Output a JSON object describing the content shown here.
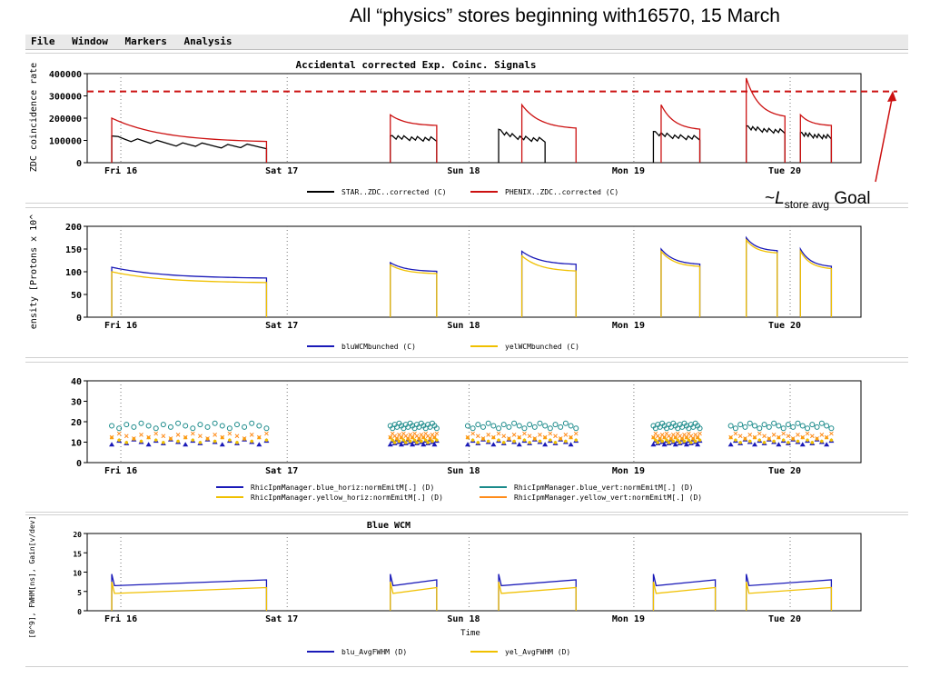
{
  "slide": {
    "title": "All “physics” stores beginning with16570, 15 March",
    "goal_tilde": "~",
    "goal_L": "L",
    "goal_sub": "store avg",
    "goal_word": "Goal"
  },
  "menu": [
    "File",
    "Window",
    "Markers",
    "Analysis"
  ],
  "x_ticks": [
    "Fri 16",
    "Sat 17",
    "Sun 18",
    "Mon 19",
    "Tue 20"
  ],
  "colors": {
    "black": "#000000",
    "red": "#cc1111",
    "blue": "#1a1ab8",
    "yellow": "#f0c000",
    "teal": "#1a8a8a",
    "orange": "#ff8c1a",
    "goal_line": "#cc1111"
  },
  "panels": {
    "zdc": {
      "title": "Accidental corrected Exp. Coinc. Signals",
      "ylabel": "ZDC coincidence rate",
      "yticks": [
        "400000",
        "300000",
        "200000",
        "100000",
        "0"
      ],
      "legend": [
        {
          "label": "STAR..ZDC..corrected (C)",
          "color": "#000000"
        },
        {
          "label": "PHENIX..ZDC..corrected (C)",
          "color": "#cc1111"
        }
      ]
    },
    "intensity": {
      "ylabel": "ensity [Protons x 10^",
      "yticks": [
        "200",
        "150",
        "100",
        "50",
        "0"
      ],
      "legend": [
        {
          "label": "bluWCMbunched (C)",
          "color": "#1a1ab8"
        },
        {
          "label": "yelWCMbunched (C)",
          "color": "#f0c000"
        }
      ]
    },
    "emit": {
      "yticks": [
        "40",
        "30",
        "20",
        "10",
        "0"
      ],
      "legend": [
        {
          "label": "RhicIpmManager.blue_horiz:normEmitM[.] (D)",
          "color": "#1a1ab8",
          "marker": "triangle"
        },
        {
          "label": "RhicIpmManager.blue_vert:normEmitM[.] (D)",
          "color": "#1a8a8a",
          "marker": "circle"
        },
        {
          "label": "RhicIpmManager.yellow_horiz:normEmitM[.] (D)",
          "color": "#f0c000",
          "marker": "star"
        },
        {
          "label": "RhicIpmManager.yellow_vert:normEmitM[.] (D)",
          "color": "#ff8c1a",
          "marker": "x"
        }
      ]
    },
    "wcm": {
      "title": "Blue WCM",
      "ylabel": "[0^9], FWHM[ns], Gain[v/dev]",
      "xlabel": "Time",
      "yticks": [
        "20",
        "15",
        "10",
        "5",
        "0"
      ],
      "legend": [
        {
          "label": "blu_AvgFWHM (D)",
          "color": "#1a1ab8"
        },
        {
          "label": "yel_AvgFWHM (D)",
          "color": "#f0c000"
        }
      ]
    }
  },
  "chart_data": [
    {
      "type": "line",
      "title": "Accidental corrected Exp. Coinc. Signals",
      "ylabel": "ZDC coincidence rate",
      "ylim": [
        0,
        400000
      ],
      "goal_line": 320000,
      "series": [
        {
          "name": "STAR..ZDC..corrected (C)",
          "stores": [
            [
              0.02,
              0.22,
              120000,
              70000
            ],
            [
              0.38,
              0.44,
              120000,
              105000
            ],
            [
              0.52,
              0.58,
              150000,
              100000
            ],
            [
              0.72,
              0.78,
              140000,
              110000
            ],
            [
              0.84,
              0.89,
              165000,
              140000
            ],
            [
              0.91,
              0.95,
              135000,
              115000
            ]
          ]
        },
        {
          "name": "PHENIX..ZDC..corrected (C)",
          "stores": [
            [
              0.02,
              0.22,
              200000,
              90000
            ],
            [
              0.38,
              0.44,
              215000,
              165000
            ],
            [
              0.55,
              0.62,
              260000,
              150000
            ],
            [
              0.73,
              0.78,
              260000,
              145000
            ],
            [
              0.84,
              0.89,
              380000,
              200000
            ],
            [
              0.91,
              0.95,
              215000,
              165000
            ]
          ]
        }
      ]
    },
    {
      "type": "line",
      "ylabel": "ensity [Protons x 10^",
      "ylim": [
        0,
        200
      ],
      "series": [
        {
          "name": "bluWCMbunched (C)",
          "stores": [
            [
              0.02,
              0.22,
              110,
              85
            ],
            [
              0.38,
              0.44,
              120,
              100
            ],
            [
              0.55,
              0.62,
              145,
              115
            ],
            [
              0.73,
              0.78,
              150,
              115
            ],
            [
              0.84,
              0.88,
              175,
              145
            ],
            [
              0.91,
              0.95,
              150,
              110
            ]
          ]
        },
        {
          "name": "yelWCMbunched (C)",
          "stores": [
            [
              0.02,
              0.22,
              100,
              75
            ],
            [
              0.38,
              0.44,
              115,
              95
            ],
            [
              0.55,
              0.62,
              135,
              100
            ],
            [
              0.73,
              0.78,
              145,
              110
            ],
            [
              0.84,
              0.88,
              170,
              140
            ],
            [
              0.91,
              0.95,
              145,
              105
            ]
          ]
        }
      ]
    },
    {
      "type": "scatter",
      "ylim": [
        0,
        40
      ],
      "series": [
        {
          "name": "RhicIpmManager.blue_horiz:normEmitM[.] (D)",
          "level": 10
        },
        {
          "name": "RhicIpmManager.blue_vert:normEmitM[.] (D)",
          "level": 18
        },
        {
          "name": "RhicIpmManager.yellow_horiz:normEmitM[.] (D)",
          "level": 11
        },
        {
          "name": "RhicIpmManager.yellow_vert:normEmitM[.] (D)",
          "level": 13
        }
      ]
    },
    {
      "type": "line",
      "title": "Blue WCM",
      "xlabel": "Time",
      "ylim": [
        0,
        20
      ],
      "series": [
        {
          "name": "blu_AvgFWHM (D)",
          "level": 6.5
        },
        {
          "name": "yel_AvgFWHM (D)",
          "level": 4.5
        }
      ]
    }
  ]
}
